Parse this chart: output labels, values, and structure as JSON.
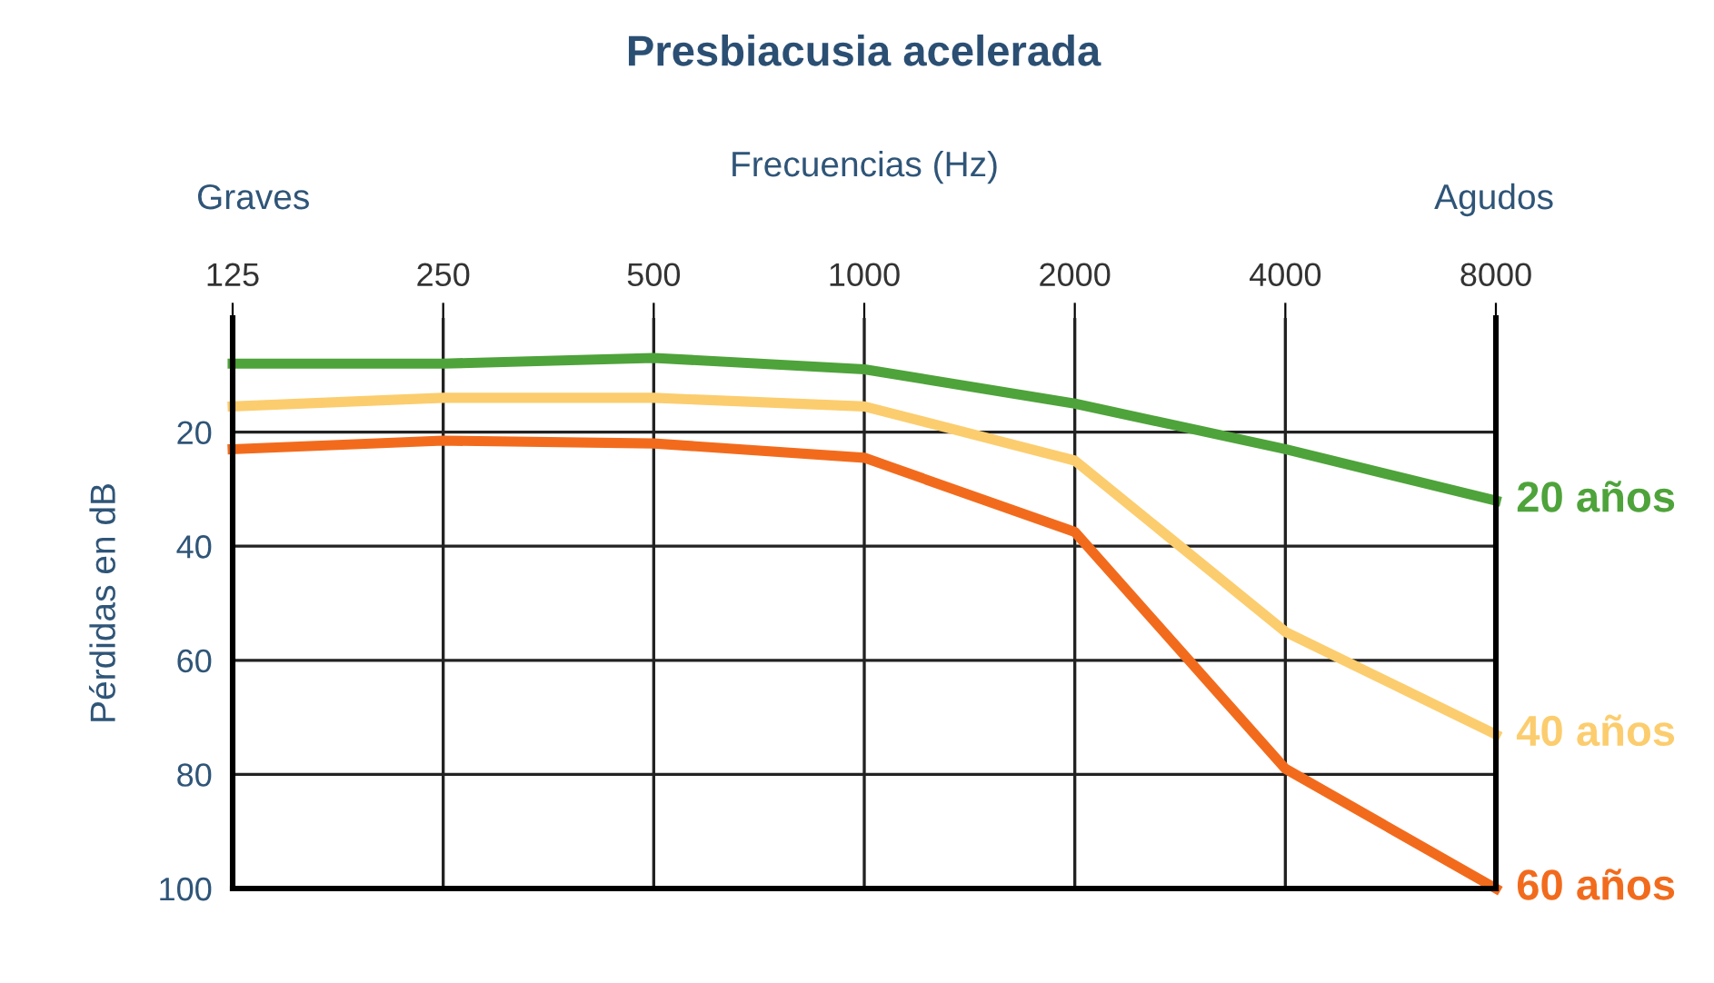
{
  "chart_data": {
    "type": "line",
    "title": "Presbiacusia acelerada",
    "xlabel": "Frecuencias (Hz)",
    "ylabel": "Pérdidas en dB",
    "categories": [
      "125",
      "250",
      "500",
      "1000",
      "2000",
      "4000",
      "8000"
    ],
    "series": [
      {
        "name": "20 años",
        "color": "#4ea33a",
        "values": [
          8,
          8,
          7,
          9,
          15,
          23,
          32
        ]
      },
      {
        "name": "40 años",
        "color": "#fccd6e",
        "values": [
          15.5,
          14,
          14,
          15.5,
          25,
          55,
          73
        ]
      },
      {
        "name": "60 años",
        "color": "#f26b1d",
        "values": [
          23,
          21.5,
          22,
          24.5,
          37.5,
          79,
          100
        ]
      }
    ],
    "ylim": [
      100,
      0
    ],
    "yticks": [
      20,
      40,
      60,
      80,
      100
    ],
    "grid": true,
    "marker": "none",
    "line_style": "solid",
    "legend": false,
    "annotations": [
      "Graves",
      "Agudos"
    ]
  }
}
